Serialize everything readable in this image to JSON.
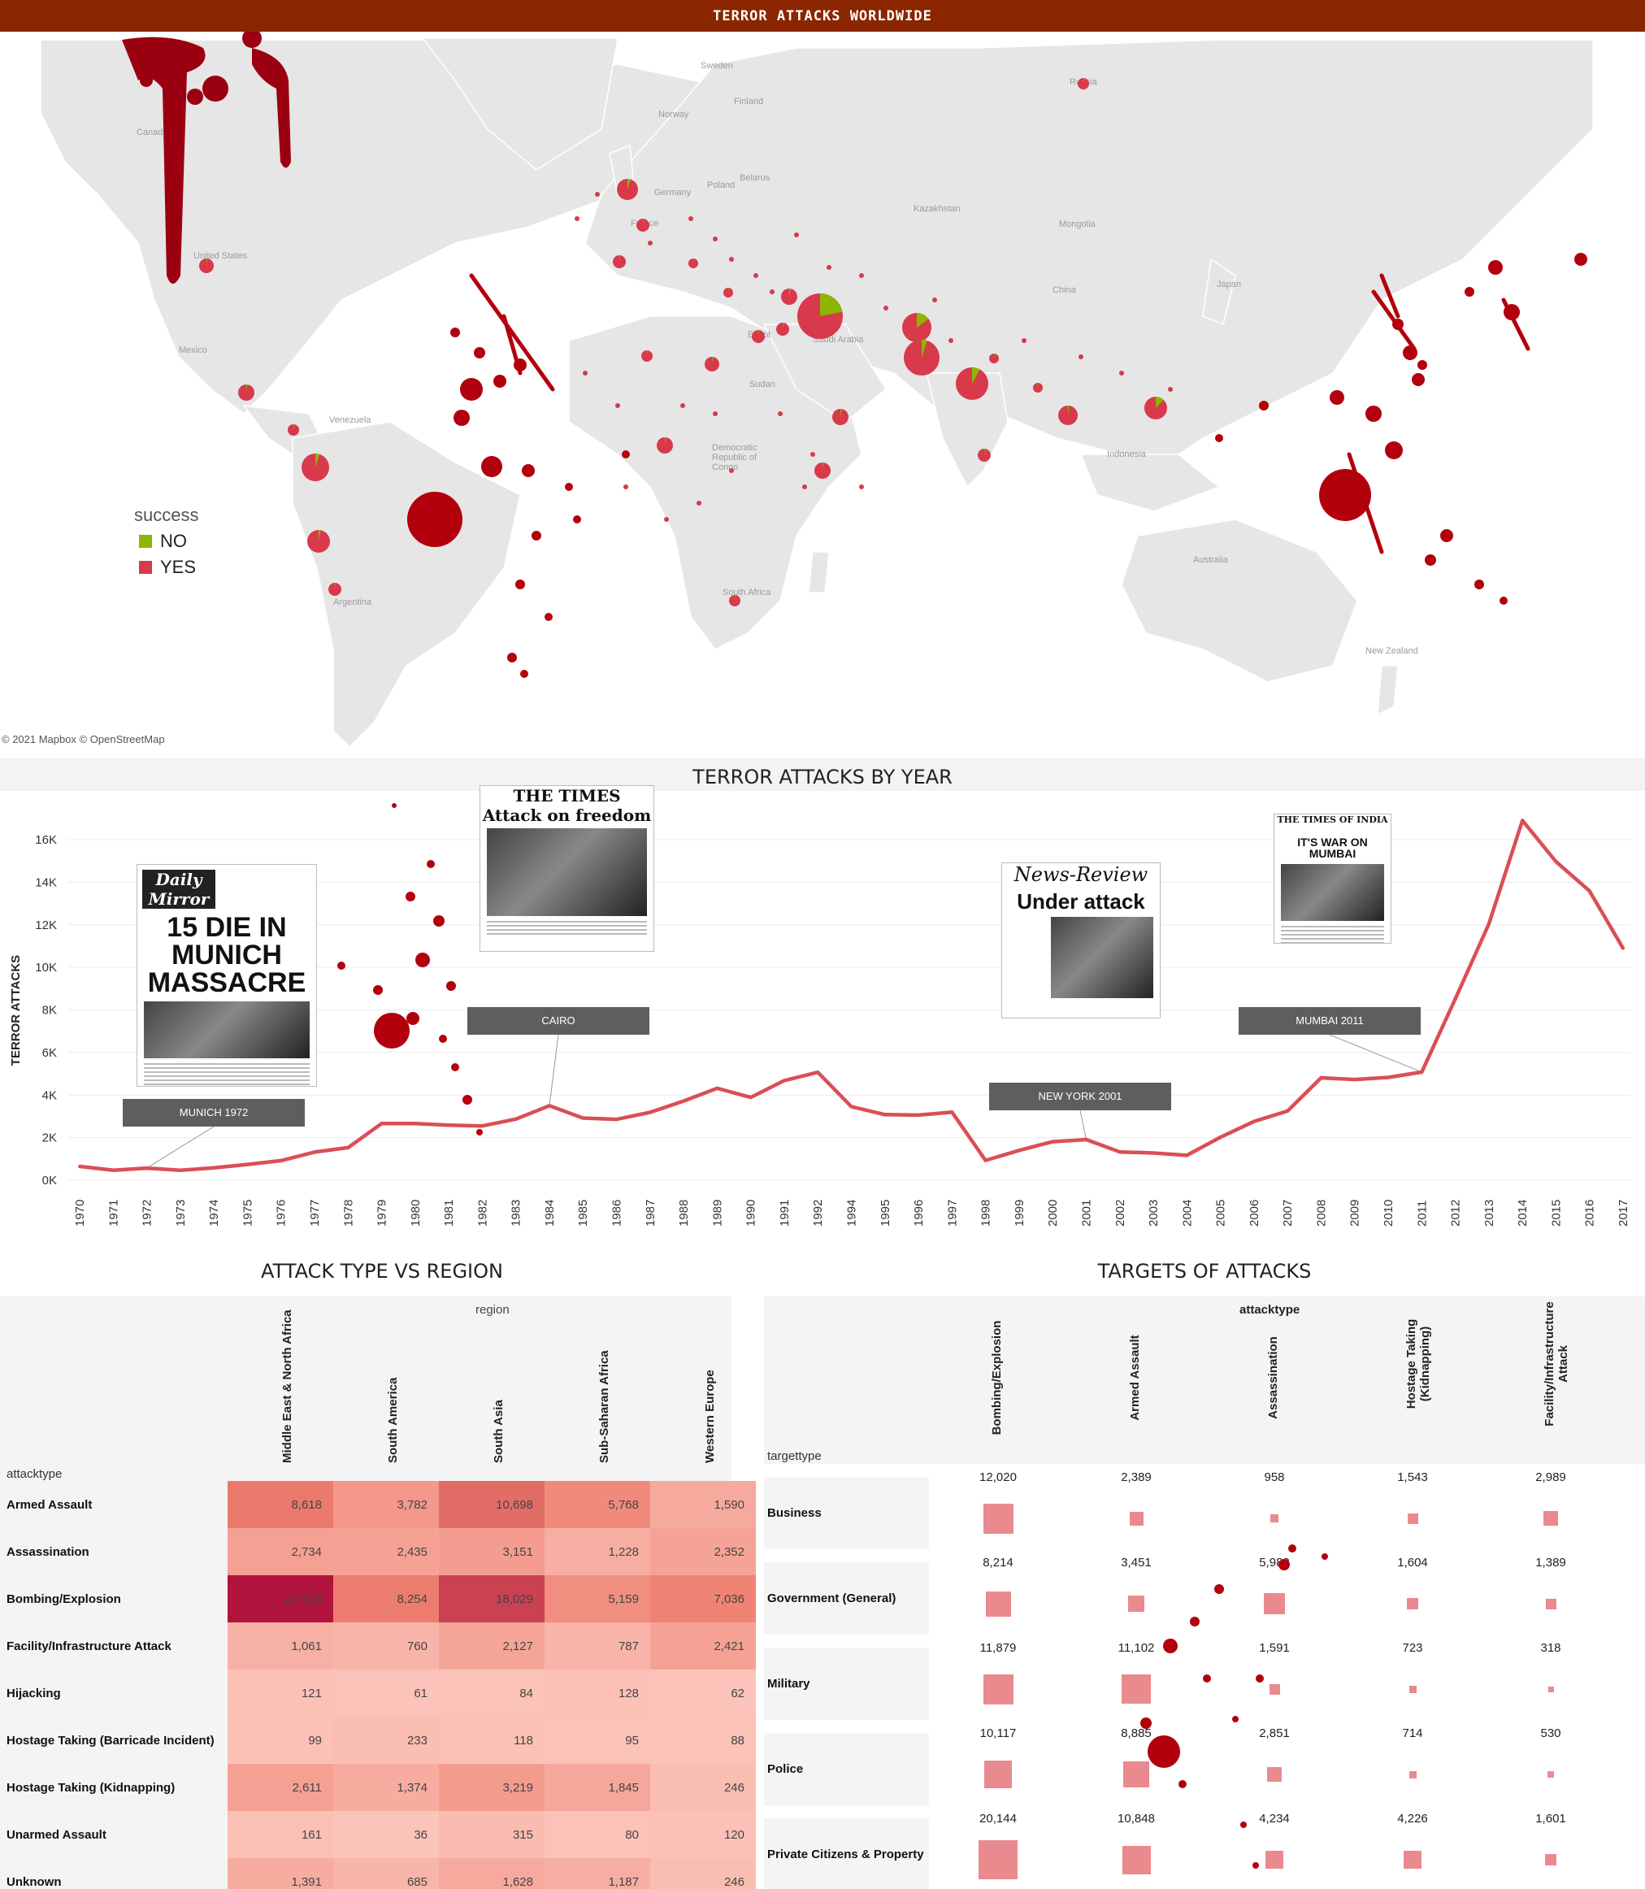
{
  "header": {
    "title": "TERROR ATTACKS WORLDWIDE"
  },
  "colors": {
    "header_bg": "#8a2600",
    "no": "#8db600",
    "yes": "#d8394b",
    "line": "#d94f55",
    "blood": "#b3000d"
  },
  "map": {
    "credit": "© 2021 Mapbox © OpenStreetMap",
    "country_labels": [
      "Sweden",
      "Finland",
      "Norway",
      "Russia",
      "Canada",
      "Germany",
      "Poland",
      "Belarus",
      "Kazakhstan",
      "Mongolia",
      "United States",
      "France",
      "China",
      "Japan",
      "Mexico",
      "Saudi Arabia",
      "Egypt",
      "Venezuela",
      "Sudan",
      "Democratic Republic of Congo",
      "Indonesia",
      "Australia",
      "Argentina",
      "South Africa",
      "New Zealand"
    ],
    "legend": {
      "title": "success",
      "items": [
        {
          "label": "NO",
          "color": "#8db600"
        },
        {
          "label": "YES",
          "color": "#d8394b"
        }
      ]
    }
  },
  "line_chart": {
    "title": "TERROR ATTACKS BY YEAR",
    "ylabel": "TERROR ATTACKS",
    "y_ticks": [
      "0K",
      "2K",
      "4K",
      "6K",
      "8K",
      "10K",
      "12K",
      "14K",
      "16K"
    ],
    "annotations": [
      {
        "label": "MUNICH 1972",
        "masthead": "Daily Mirror",
        "headline": "15 DIE IN MUNICH MASSACRE"
      },
      {
        "label": "CAIRO",
        "masthead": "THE TIMES",
        "headline": "Attack on freedom"
      },
      {
        "label": "NEW YORK 2001",
        "masthead": "News-Review",
        "headline": "Under attack"
      },
      {
        "label": "MUMBAI 2011",
        "masthead": "THE TIMES OF INDIA",
        "headline": "IT'S WAR ON MUMBAI"
      }
    ]
  },
  "chart_data": [
    {
      "type": "pie",
      "title": "TERROR ATTACKS WORLDWIDE",
      "description_series": "success",
      "series": [
        {
          "name": "NO"
        },
        {
          "name": "YES"
        }
      ]
    },
    {
      "type": "line",
      "title": "TERROR ATTACKS BY YEAR",
      "xlabel": "",
      "ylabel": "TERROR ATTACKS",
      "ylim": [
        0,
        17000
      ],
      "x": [
        "1970",
        "1971",
        "1972",
        "1973",
        "1974",
        "1975",
        "1976",
        "1977",
        "1978",
        "1979",
        "1980",
        "1981",
        "1982",
        "1983",
        "1984",
        "1985",
        "1986",
        "1987",
        "1988",
        "1989",
        "1990",
        "1991",
        "1992",
        "1994",
        "1995",
        "1996",
        "1997",
        "1998",
        "1999",
        "2000",
        "2001",
        "2002",
        "2003",
        "2004",
        "2005",
        "2006",
        "2007",
        "2008",
        "2009",
        "2010",
        "2011",
        "2012",
        "2013",
        "2014",
        "2015",
        "2016",
        "2017"
      ],
      "values": [
        650,
        470,
        570,
        470,
        580,
        740,
        920,
        1320,
        1530,
        2660,
        2660,
        2590,
        2550,
        2870,
        3500,
        2920,
        2860,
        3190,
        3720,
        4320,
        3890,
        4680,
        5070,
        3460,
        3080,
        3060,
        3200,
        930,
        1400,
        1810,
        1910,
        1330,
        1280,
        1170,
        2020,
        2760,
        3250,
        4810,
        4730,
        4830,
        5080,
        8520,
        12040,
        16900,
        14970,
        13590,
        10900
      ]
    },
    {
      "type": "heatmap",
      "title": "ATTACK TYPE VS REGION",
      "column_dimension": "region",
      "row_dimension": "attacktype",
      "columns": [
        "Middle East & North Africa",
        "South America",
        "South Asia",
        "Sub-Saharan Africa",
        "Western Europe"
      ],
      "rows": [
        "Armed Assault",
        "Assassination",
        "Bombing/Explosion",
        "Facility/Infrastructure Attack",
        "Hijacking",
        "Hostage Taking (Barricade Incident)",
        "Hostage Taking (Kidnapping)",
        "Unarmed Assault",
        "Unknown"
      ],
      "values": [
        [
          8618,
          3782,
          10698,
          5768,
          1590
        ],
        [
          2734,
          2435,
          3151,
          1228,
          2352
        ],
        [
          27523,
          8254,
          18029,
          5159,
          7036
        ],
        [
          1061,
          760,
          2127,
          787,
          2421
        ],
        [
          121,
          61,
          84,
          128,
          62
        ],
        [
          99,
          233,
          118,
          95,
          88
        ],
        [
          2611,
          1374,
          3219,
          1845,
          246
        ],
        [
          161,
          36,
          315,
          80,
          120
        ],
        [
          1391,
          685,
          1628,
          1187,
          246
        ]
      ],
      "labels": [
        [
          "8,618",
          "3,782",
          "10,698",
          "5,768",
          "1,590"
        ],
        [
          "2,734",
          "2,435",
          "3,151",
          "1,228",
          "2,352"
        ],
        [
          "27,523",
          "8,254",
          "18,029",
          "5,159",
          "7,036"
        ],
        [
          "1,061",
          "760",
          "2,127",
          "787",
          "2,421"
        ],
        [
          "121",
          "61",
          "84",
          "128",
          "62"
        ],
        [
          "99",
          "233",
          "118",
          "95",
          "88"
        ],
        [
          "2,611",
          "1,374",
          "3,219",
          "1,845",
          "246"
        ],
        [
          "161",
          "36",
          "315",
          "80",
          "120"
        ],
        [
          "1,391",
          "685",
          "1,628",
          "1,187",
          "246"
        ]
      ]
    },
    {
      "type": "table",
      "title": "TARGETS OF ATTACKS",
      "column_dimension": "attacktype",
      "row_dimension": "targettype",
      "columns": [
        "Bombing/Explosion",
        "Armed Assault",
        "Assassination",
        "Hostage Taking (Kidnapping)",
        "Facility/Infrastructure Attack"
      ],
      "rows": [
        "Business",
        "Government (General)",
        "Military",
        "Police",
        "Private Citizens & Property"
      ],
      "values": [
        [
          12020,
          2389,
          958,
          1543,
          2989
        ],
        [
          8214,
          3451,
          5982,
          1604,
          1389
        ],
        [
          11879,
          11102,
          1591,
          723,
          318
        ],
        [
          10117,
          8885,
          2851,
          714,
          530
        ],
        [
          20144,
          10848,
          4234,
          4226,
          1601
        ]
      ],
      "labels": [
        [
          "12,020",
          "2,389",
          "958",
          "1,543",
          "2,989"
        ],
        [
          "8,214",
          "3,451",
          "5,982",
          "1,604",
          "1,389"
        ],
        [
          "11,879",
          "11,102",
          "1,591",
          "723",
          "318"
        ],
        [
          "10,117",
          "8,885",
          "2,851",
          "714",
          "530"
        ],
        [
          "20,144",
          "10,848",
          "4,234",
          "4,226",
          "1,601"
        ]
      ]
    }
  ]
}
